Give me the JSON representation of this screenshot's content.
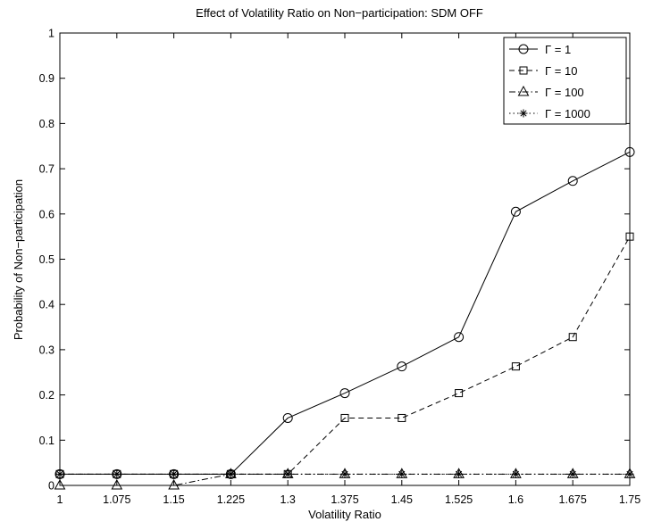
{
  "chart_data": {
    "type": "line",
    "title": "Effect of Volatility Ratio on Non−participation: SDM OFF",
    "xlabel": "Volatility Ratio",
    "ylabel": "Probability of Non−participation",
    "xlim": [
      1,
      1.75
    ],
    "ylim": [
      0,
      1
    ],
    "x": [
      1,
      1.075,
      1.15,
      1.225,
      1.3,
      1.375,
      1.45,
      1.525,
      1.6,
      1.675,
      1.75
    ],
    "xtick_labels": [
      "1",
      "1.075",
      "1.15",
      "1.225",
      "1.3",
      "1.375",
      "1.45",
      "1.525",
      "1.6",
      "1.675",
      "1.75"
    ],
    "yticks": [
      0,
      0.1,
      0.2,
      0.3,
      0.4,
      0.5,
      0.6,
      0.7,
      0.8,
      0.9,
      1
    ],
    "ytick_labels": [
      "0",
      "0.1",
      "0.2",
      "0.3",
      "0.4",
      "0.5",
      "0.6",
      "0.7",
      "0.8",
      "0.9",
      "1"
    ],
    "grid": false,
    "legend_position": "top-right",
    "series": [
      {
        "name": "Γ = 1",
        "marker": "circle",
        "line": "solid",
        "values": [
          0.025,
          0.025,
          0.025,
          0.025,
          0.149,
          0.204,
          0.263,
          0.328,
          0.605,
          0.673,
          0.737
        ]
      },
      {
        "name": "Γ = 10",
        "marker": "square",
        "line": "dashed",
        "values": [
          0.025,
          0.025,
          0.025,
          0.025,
          0.025,
          0.149,
          0.149,
          0.204,
          0.263,
          0.328,
          0.55
        ]
      },
      {
        "name": "Γ = 100",
        "marker": "triangle",
        "line": "dashdot",
        "values": [
          0,
          0,
          0,
          0.025,
          0.025,
          0.025,
          0.025,
          0.025,
          0.025,
          0.025,
          0.025
        ]
      },
      {
        "name": "Γ = 1000",
        "marker": "star",
        "line": "dotted",
        "values": [
          0.025,
          0.025,
          0.025,
          0.025,
          0.025,
          0.025,
          0.025,
          0.025,
          0.025,
          0.025,
          0.025
        ]
      }
    ]
  }
}
